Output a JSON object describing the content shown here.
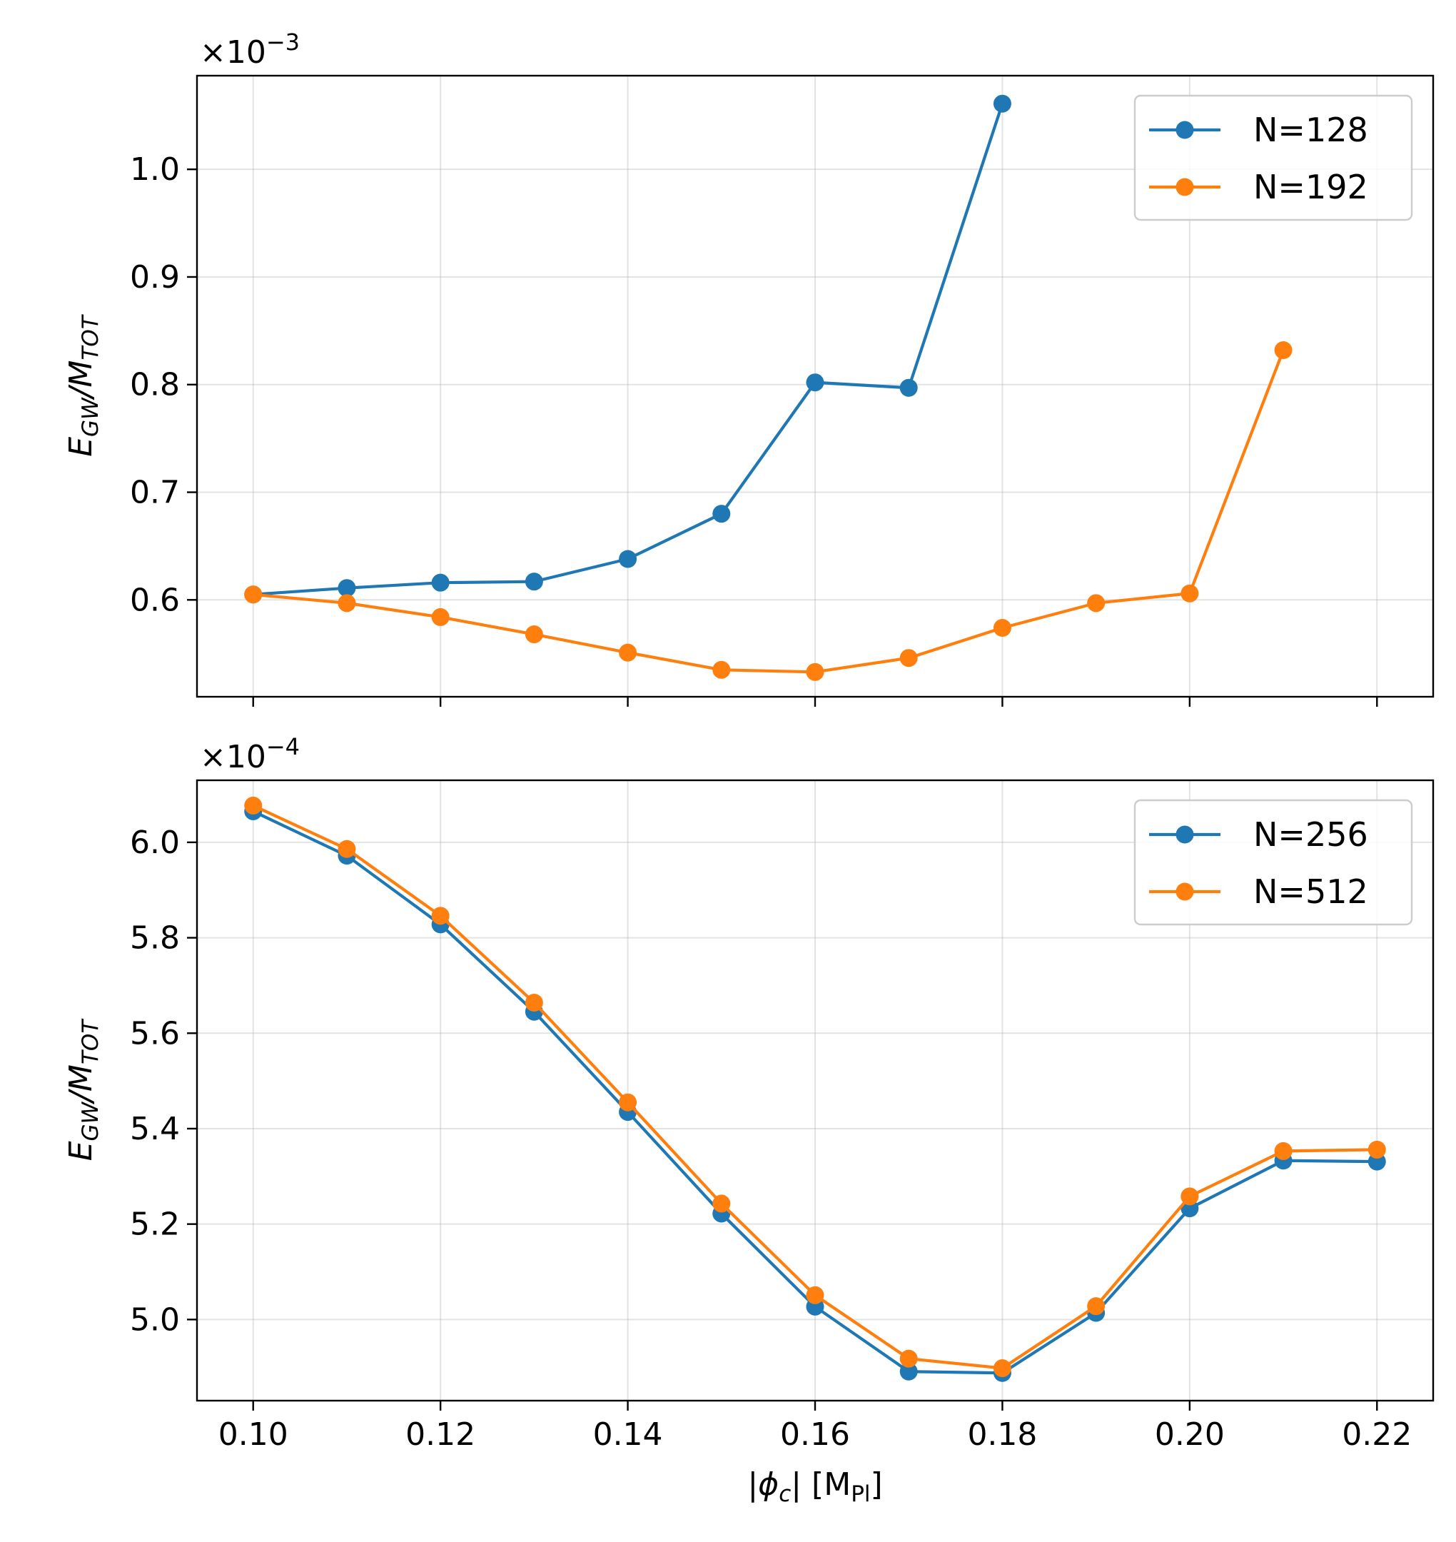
{
  "chart_data": [
    {
      "type": "line",
      "title": "",
      "offset_text": "×10",
      "offset_exp": "−3",
      "xlabel": "",
      "ylabel_main": "E",
      "ylabel_sub1": "GW",
      "ylabel_mid": "/M",
      "ylabel_sub2": "TOT",
      "xlim": [
        0.094,
        0.226
      ],
      "ylim": [
        0.51,
        1.087
      ],
      "yticks": [
        {
          "v": 0.6,
          "label": "0.6"
        },
        {
          "v": 0.7,
          "label": "0.7"
        },
        {
          "v": 0.8,
          "label": "0.8"
        },
        {
          "v": 0.9,
          "label": "0.9"
        },
        {
          "v": 1.0,
          "label": "1.0"
        }
      ],
      "xticks": [
        {
          "v": 0.1,
          "label": "0.10"
        },
        {
          "v": 0.12,
          "label": "0.12"
        },
        {
          "v": 0.14,
          "label": "0.14"
        },
        {
          "v": 0.16,
          "label": "0.16"
        },
        {
          "v": 0.18,
          "label": "0.18"
        },
        {
          "v": 0.2,
          "label": "0.20"
        },
        {
          "v": 0.22,
          "label": "0.22"
        }
      ],
      "show_xtick_labels": false,
      "grid": true,
      "legend_position": "upper right",
      "series": [
        {
          "name": "N=128",
          "color": "#1f77b4",
          "x": [
            0.1,
            0.11,
            0.12,
            0.13,
            0.14,
            0.15,
            0.16,
            0.17,
            0.18
          ],
          "y": [
            0.605,
            0.611,
            0.616,
            0.617,
            0.638,
            0.68,
            0.802,
            0.797,
            1.061
          ]
        },
        {
          "name": "N=192",
          "color": "#ff7f0e",
          "x": [
            0.1,
            0.11,
            0.12,
            0.13,
            0.14,
            0.15,
            0.16,
            0.17,
            0.18,
            0.19,
            0.2,
            0.21
          ],
          "y": [
            0.605,
            0.597,
            0.584,
            0.568,
            0.551,
            0.535,
            0.533,
            0.546,
            0.574,
            0.597,
            0.606,
            0.832
          ]
        }
      ]
    },
    {
      "type": "line",
      "title": "",
      "offset_text": "×10",
      "offset_exp": "−4",
      "xlabel_pre": "|ϕ",
      "xlabel_sub1": "c",
      "xlabel_mid": "| [M",
      "xlabel_sub2": "Pl",
      "xlabel_post": "]",
      "ylabel_main": "E",
      "ylabel_sub1": "GW",
      "ylabel_mid": "/M",
      "ylabel_sub2": "TOT",
      "xlim": [
        0.094,
        0.226
      ],
      "ylim": [
        4.83,
        6.13
      ],
      "yticks": [
        {
          "v": 5.0,
          "label": "5.0"
        },
        {
          "v": 5.2,
          "label": "5.2"
        },
        {
          "v": 5.4,
          "label": "5.4"
        },
        {
          "v": 5.6,
          "label": "5.6"
        },
        {
          "v": 5.8,
          "label": "5.8"
        },
        {
          "v": 6.0,
          "label": "6.0"
        }
      ],
      "xticks": [
        {
          "v": 0.1,
          "label": "0.10"
        },
        {
          "v": 0.12,
          "label": "0.12"
        },
        {
          "v": 0.14,
          "label": "0.14"
        },
        {
          "v": 0.16,
          "label": "0.16"
        },
        {
          "v": 0.18,
          "label": "0.18"
        },
        {
          "v": 0.2,
          "label": "0.20"
        },
        {
          "v": 0.22,
          "label": "0.22"
        }
      ],
      "show_xtick_labels": true,
      "grid": true,
      "legend_position": "upper right",
      "series": [
        {
          "name": "N=256",
          "color": "#1f77b4",
          "x": [
            0.1,
            0.11,
            0.12,
            0.13,
            0.14,
            0.15,
            0.16,
            0.17,
            0.18,
            0.19,
            0.2,
            0.21,
            0.22
          ],
          "y": [
            6.065,
            5.972,
            5.828,
            5.645,
            5.435,
            5.222,
            5.027,
            4.891,
            4.888,
            5.014,
            5.233,
            5.333,
            5.331
          ]
        },
        {
          "name": "N=512",
          "color": "#ff7f0e",
          "x": [
            0.1,
            0.11,
            0.12,
            0.13,
            0.14,
            0.15,
            0.16,
            0.17,
            0.18,
            0.19,
            0.2,
            0.21,
            0.22
          ],
          "y": [
            6.077,
            5.986,
            5.846,
            5.664,
            5.455,
            5.243,
            5.051,
            4.918,
            4.898,
            5.028,
            5.258,
            5.353,
            5.356
          ]
        }
      ]
    }
  ]
}
